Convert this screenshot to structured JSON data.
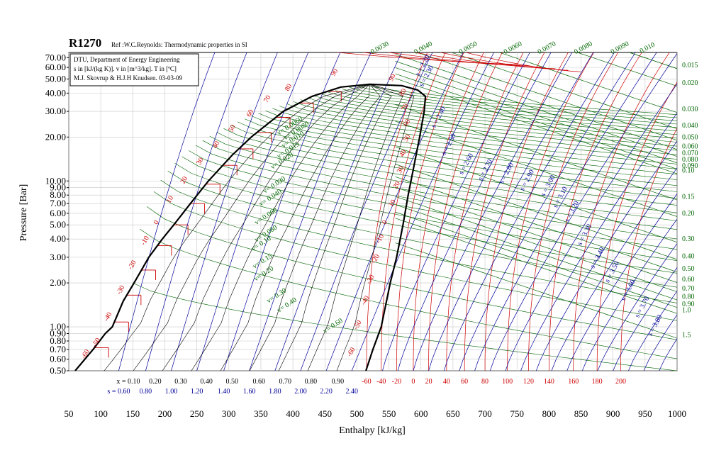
{
  "chart_data": {
    "type": "line",
    "title": "R1270",
    "subtitle": "Ref :W.C.Reynolds: Thermodynamic properties in SI",
    "info_box": [
      "DTU, Department of Energy Engineering",
      "s in [kJ/(kg K)]. v in [m^3/kg]. T in [ºC]",
      "M.J. Skovrup & H.J.H Knudsen. 03-03-09"
    ],
    "xlabel": "Enthalpy [kJ/kg]",
    "ylabel": "Pressure [Bar]",
    "xlim": [
      50,
      1000
    ],
    "ylim": [
      0.5,
      76
    ],
    "yscale": "log",
    "x_ticks": [
      50,
      100,
      150,
      200,
      250,
      300,
      350,
      400,
      450,
      500,
      550,
      600,
      650,
      700,
      750,
      800,
      850,
      900,
      950,
      1000
    ],
    "y_ticks": [
      {
        "v": 70,
        "label": "70.00"
      },
      {
        "v": 60,
        "label": "60.00"
      },
      {
        "v": 50,
        "label": "50.00"
      },
      {
        "v": 40,
        "label": "40.00"
      },
      {
        "v": 30,
        "label": "30.00"
      },
      {
        "v": 20,
        "label": "20.00"
      },
      {
        "v": 10,
        "label": "10.00"
      },
      {
        "v": 9,
        "label": "9.00"
      },
      {
        "v": 8,
        "label": "8.00"
      },
      {
        "v": 7,
        "label": "7.00"
      },
      {
        "v": 6,
        "label": "6.00"
      },
      {
        "v": 5,
        "label": "5.00"
      },
      {
        "v": 4,
        "label": "4.00"
      },
      {
        "v": 3,
        "label": "3.00"
      },
      {
        "v": 2,
        "label": "2.00"
      },
      {
        "v": 1,
        "label": "1.00"
      },
      {
        "v": 0.9,
        "label": "0.90"
      },
      {
        "v": 0.8,
        "label": "0.80"
      },
      {
        "v": 0.7,
        "label": "0.70"
      },
      {
        "v": 0.6,
        "label": "0.60"
      },
      {
        "v": 0.5,
        "label": "0.50"
      }
    ],
    "critical_point": {
      "h": 520,
      "p": 46
    },
    "saturation_liquid": [
      [
        60,
        0.5
      ],
      [
        88,
        0.7
      ],
      [
        107,
        0.9
      ],
      [
        118,
        1.0
      ],
      [
        135,
        1.5
      ],
      [
        152,
        2.0
      ],
      [
        175,
        3.0
      ],
      [
        196,
        4.0
      ],
      [
        214,
        5.0
      ],
      [
        240,
        7.0
      ],
      [
        268,
        10
      ],
      [
        305,
        15
      ],
      [
        335,
        20
      ],
      [
        385,
        30
      ],
      [
        430,
        38
      ],
      [
        475,
        44
      ],
      [
        520,
        46
      ]
    ],
    "saturation_vapor": [
      [
        520,
        46
      ],
      [
        570,
        45
      ],
      [
        595,
        42
      ],
      [
        607,
        38
      ],
      [
        605,
        30
      ],
      [
        598,
        20
      ],
      [
        588,
        12
      ],
      [
        580,
        8
      ],
      [
        572,
        5
      ],
      [
        562,
        3
      ],
      [
        552,
        2
      ],
      [
        538,
        1.0
      ],
      [
        525,
        0.7
      ],
      [
        514,
        0.5
      ]
    ],
    "temperature_labels": [
      {
        "h": 92,
        "p": 0.72,
        "label": "-50"
      },
      {
        "h": 110,
        "p": 1.08,
        "label": "-40"
      },
      {
        "h": 130,
        "p": 1.65,
        "label": "-30"
      },
      {
        "h": 148,
        "p": 2.45,
        "label": "-20"
      },
      {
        "h": 168,
        "p": 3.6,
        "label": "-10"
      },
      {
        "h": 188,
        "p": 5.0,
        "label": "0"
      },
      {
        "h": 208,
        "p": 7.0,
        "label": "10"
      },
      {
        "h": 230,
        "p": 9.5,
        "label": "20"
      },
      {
        "h": 255,
        "p": 12.8,
        "label": "30"
      },
      {
        "h": 280,
        "p": 16.6,
        "label": "40"
      },
      {
        "h": 305,
        "p": 21.5,
        "label": "50"
      },
      {
        "h": 333,
        "p": 27.3,
        "label": "60"
      },
      {
        "h": 360,
        "p": 34.2,
        "label": "70"
      },
      {
        "h": 393,
        "p": 41.0,
        "label": "80"
      },
      {
        "h": 465,
        "p": 52.0,
        "label": "90"
      },
      {
        "h": 555,
        "p": 48.0,
        "label": "90"
      },
      {
        "h": 572,
        "p": 38.0,
        "label": "80"
      },
      {
        "h": 575,
        "p": 30.0,
        "label": "70"
      },
      {
        "h": 578,
        "p": 23.5,
        "label": "60"
      },
      {
        "h": 578,
        "p": 18.5,
        "label": "50"
      },
      {
        "h": 572,
        "p": 14.5,
        "label": "40"
      },
      {
        "h": 568,
        "p": 11.2,
        "label": "30"
      },
      {
        "h": 562,
        "p": 8.8,
        "label": "20"
      },
      {
        "h": 555,
        "p": 6.6,
        "label": "10"
      },
      {
        "h": 545,
        "p": 5.0,
        "label": "0"
      },
      {
        "h": 535,
        "p": 3.7,
        "label": "-10"
      },
      {
        "h": 528,
        "p": 2.7,
        "label": "-20"
      },
      {
        "h": 520,
        "p": 1.95,
        "label": "-30"
      },
      {
        "h": 512,
        "p": 1.4,
        "label": "-40"
      },
      {
        "h": 500,
        "p": 0.95,
        "label": "-50"
      },
      {
        "h": 490,
        "p": 0.62,
        "label": "-60"
      },
      {
        "h": 75,
        "p": 0.6,
        "label": "-60"
      }
    ],
    "temperature_bottom_labels": [
      "-60",
      "-40",
      "-20",
      "0",
      "20",
      "40",
      "60",
      "80",
      "100",
      "120",
      "140",
      "160",
      "180",
      "200"
    ],
    "temperature_bottom_h": [
      515,
      538,
      562,
      588,
      612,
      640,
      668,
      700,
      735,
      768,
      800,
      838,
      875,
      912
    ],
    "quality_labels": [
      "x = 0.10",
      "0.20",
      "0.30",
      "0.40",
      "0.50",
      "0.60",
      "0.70",
      "0.80",
      "0.90"
    ],
    "quality_h": [
      143,
      185,
      225,
      265,
      305,
      347,
      388,
      428,
      470
    ],
    "entropy_bottom_labels": [
      "s = 0.60",
      "0.80",
      "1.00",
      "1.20",
      "1.40",
      "1.60",
      "1.80",
      "2.00",
      "2.20",
      "2.40"
    ],
    "entropy_bottom_h": [
      128,
      170,
      210,
      250,
      292,
      332,
      372,
      412,
      452,
      492
    ],
    "volume_labels_top": [
      "0.0030",
      "0.0040",
      "0.0050",
      "0.0060",
      "0.0070",
      "0.0080",
      "0.0090",
      "0.010"
    ],
    "volume_top_h": [
      537,
      605,
      675,
      745,
      798,
      855,
      912,
      955
    ],
    "volume_labels_right": [
      "0.015",
      "0.020",
      "0.030",
      "0.040",
      "0.050",
      "0.060",
      "0.070",
      "0.080",
      "0.090",
      "0.10",
      "0.15",
      "0.20",
      "0.30",
      "0.40",
      "0.50",
      "0.60",
      "0.70",
      "0.80",
      "0.90",
      "1.0",
      "1.5"
    ],
    "volume_right_p": [
      62,
      47,
      31,
      24,
      20,
      17.3,
      15.5,
      14,
      12.7,
      11.8,
      7.8,
      6,
      4,
      3.05,
      2.5,
      2.12,
      1.83,
      1.61,
      1.43,
      1.3,
      0.88
    ],
    "volume_labels_inner": [
      {
        "h": 378,
        "p": 20.5,
        "label": "v= 0.0060"
      },
      {
        "h": 388,
        "p": 19.0,
        "label": "v= 0.0080"
      },
      {
        "h": 385,
        "p": 16.8,
        "label": "v= 0.010"
      },
      {
        "h": 378,
        "p": 14.2,
        "label": "v= 0.015"
      },
      {
        "h": 368,
        "p": 12.0,
        "label": "v= 0.020"
      },
      {
        "h": 356,
        "p": 8.2,
        "label": "v= 0.030"
      },
      {
        "h": 350,
        "p": 6.7,
        "label": "v= 0.040"
      },
      {
        "h": 343,
        "p": 5.0,
        "label": "v= 0.060"
      },
      {
        "h": 343,
        "p": 3.8,
        "label": "v= 0.080"
      },
      {
        "h": 338,
        "p": 3.3,
        "label": "v= 0.10"
      },
      {
        "h": 340,
        "p": 2.5,
        "label": "v= 0.15"
      },
      {
        "h": 342,
        "p": 2.05,
        "label": "v= 0.20"
      },
      {
        "h": 362,
        "p": 1.45,
        "label": "v= 0.30"
      },
      {
        "h": 378,
        "p": 1.25,
        "label": "v= 0.40"
      },
      {
        "h": 450,
        "p": 0.9,
        "label": "v= 0.60"
      }
    ],
    "entropy_labels_vapor": [
      {
        "h": 597,
        "p": 52.0,
        "label": "s = 2.20"
      },
      {
        "h": 603,
        "p": 44.0,
        "label": "s = 2.30"
      },
      {
        "h": 622,
        "p": 23.0,
        "label": "s = 2.40"
      },
      {
        "h": 638,
        "p": 15.0,
        "label": "s = 2.50"
      },
      {
        "h": 665,
        "p": 11.0,
        "label": "s = 2.60"
      },
      {
        "h": 695,
        "p": 10.0,
        "label": "s = 2.70"
      },
      {
        "h": 728,
        "p": 9.5,
        "label": "s = 2.80"
      },
      {
        "h": 760,
        "p": 8.5,
        "label": "s = 2.90"
      },
      {
        "h": 793,
        "p": 7.8,
        "label": "s = 3.00"
      },
      {
        "h": 812,
        "p": 6.5,
        "label": "s = 3.10"
      },
      {
        "h": 830,
        "p": 5.2,
        "label": "s = 3.20"
      },
      {
        "h": 850,
        "p": 3.6,
        "label": "s = 3.30"
      },
      {
        "h": 870,
        "p": 2.5,
        "label": "s = 3.40"
      },
      {
        "h": 893,
        "p": 2.0,
        "label": "s = 3.50"
      },
      {
        "h": 918,
        "p": 1.5,
        "label": "s = 3.60"
      },
      {
        "h": 940,
        "p": 1.15,
        "label": "s = 3.70"
      },
      {
        "h": 960,
        "p": 0.86,
        "label": "s = 3.80"
      }
    ],
    "colors": {
      "temperature": "#cc0000",
      "volume": "#006600",
      "entropy": "#000099",
      "saturation": "#000000"
    },
    "grid": true
  }
}
